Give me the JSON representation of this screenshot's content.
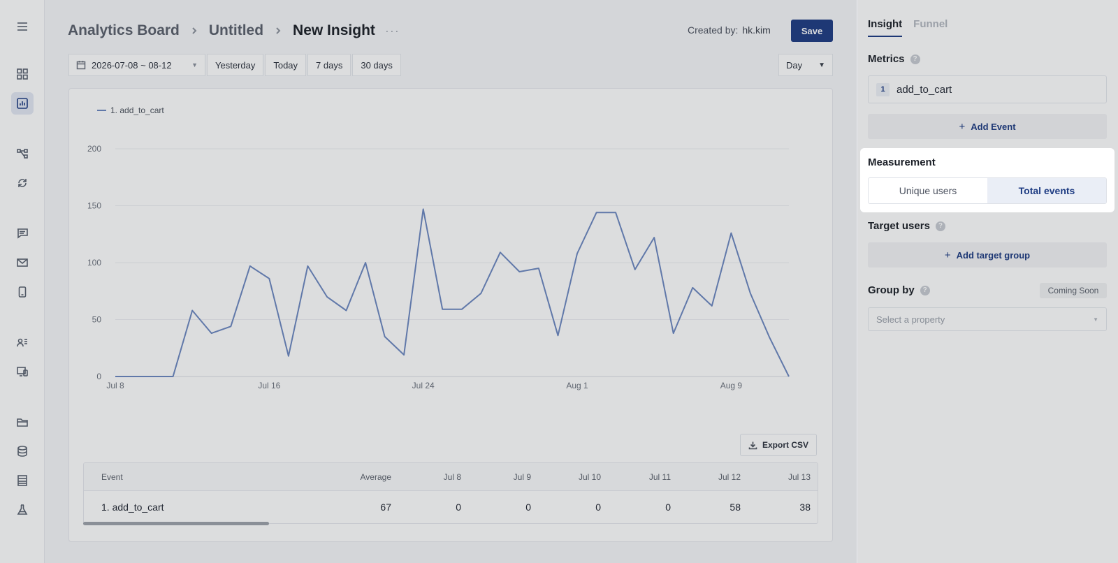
{
  "breadcrumb": {
    "items": [
      "Analytics Board",
      "Untitled",
      "New Insight"
    ],
    "more": "···"
  },
  "header": {
    "created_by_label": "Created by:",
    "created_by_user": "hk.kim",
    "save_label": "Save"
  },
  "date_filter": {
    "range": "2026-07-08 ~ 08-12",
    "presets": [
      "Yesterday",
      "Today",
      "7 days",
      "30 days"
    ],
    "interval": "Day"
  },
  "sidebar": {
    "icons": [
      "dashboard-icon",
      "chart-icon",
      "flow-icon",
      "refresh-icon",
      "message-icon",
      "mail-icon",
      "mobile-icon",
      "users-icon",
      "devices-icon",
      "folder-icon",
      "database-icon",
      "table-icon",
      "flask-icon"
    ],
    "active_index": 1
  },
  "chart_data": {
    "type": "line",
    "legend": [
      "1. add_to_cart"
    ],
    "x_tick_labels": [
      "Jul 8",
      "Jul 16",
      "Jul 24",
      "Aug 1",
      "Aug 9"
    ],
    "y_tick_labels": [
      "0",
      "50",
      "100",
      "150",
      "200"
    ],
    "ylim": [
      0,
      200
    ],
    "x": [
      "Jul 8",
      "Jul 9",
      "Jul 10",
      "Jul 11",
      "Jul 12",
      "Jul 13",
      "Jul 14",
      "Jul 15",
      "Jul 16",
      "Jul 17",
      "Jul 18",
      "Jul 19",
      "Jul 20",
      "Jul 21",
      "Jul 22",
      "Jul 23",
      "Jul 24",
      "Jul 25",
      "Jul 26",
      "Jul 27",
      "Jul 28",
      "Jul 29",
      "Jul 30",
      "Jul 31",
      "Aug 1",
      "Aug 2",
      "Aug 3",
      "Aug 4",
      "Aug 5",
      "Aug 6",
      "Aug 7",
      "Aug 8",
      "Aug 9",
      "Aug 10",
      "Aug 11",
      "Aug 12"
    ],
    "series": [
      {
        "name": "1. add_to_cart",
        "color": "#6c87c0",
        "values": [
          0,
          0,
          0,
          0,
          58,
          38,
          44,
          97,
          86,
          18,
          97,
          70,
          58,
          100,
          35,
          19,
          147,
          59,
          59,
          73,
          109,
          92,
          95,
          36,
          108,
          144,
          144,
          94,
          122,
          38,
          78,
          62,
          126,
          73,
          34,
          0
        ]
      }
    ],
    "grid": true,
    "legend_position": "top-left"
  },
  "export_label": "Export CSV",
  "table": {
    "headers": [
      "Event",
      "Average",
      "Jul 8",
      "Jul 9",
      "Jul 10",
      "Jul 11",
      "Jul 12",
      "Jul 13"
    ],
    "rows": [
      [
        "1. add_to_cart",
        "67",
        "0",
        "0",
        "0",
        "0",
        "58",
        "38"
      ]
    ]
  },
  "panel": {
    "tabs": [
      "Insight",
      "Funnel"
    ],
    "metrics_label": "Metrics",
    "metric_index": "1",
    "metric_name": "add_to_cart",
    "add_event_label": "Add Event",
    "measurement_label": "Measurement",
    "measurement_options": [
      "Unique users",
      "Total events"
    ],
    "measurement_selected": "Total events",
    "target_users_label": "Target users",
    "add_target_label": "Add target group",
    "group_by_label": "Group by",
    "coming_soon": "Coming Soon",
    "property_placeholder": "Select a property"
  }
}
